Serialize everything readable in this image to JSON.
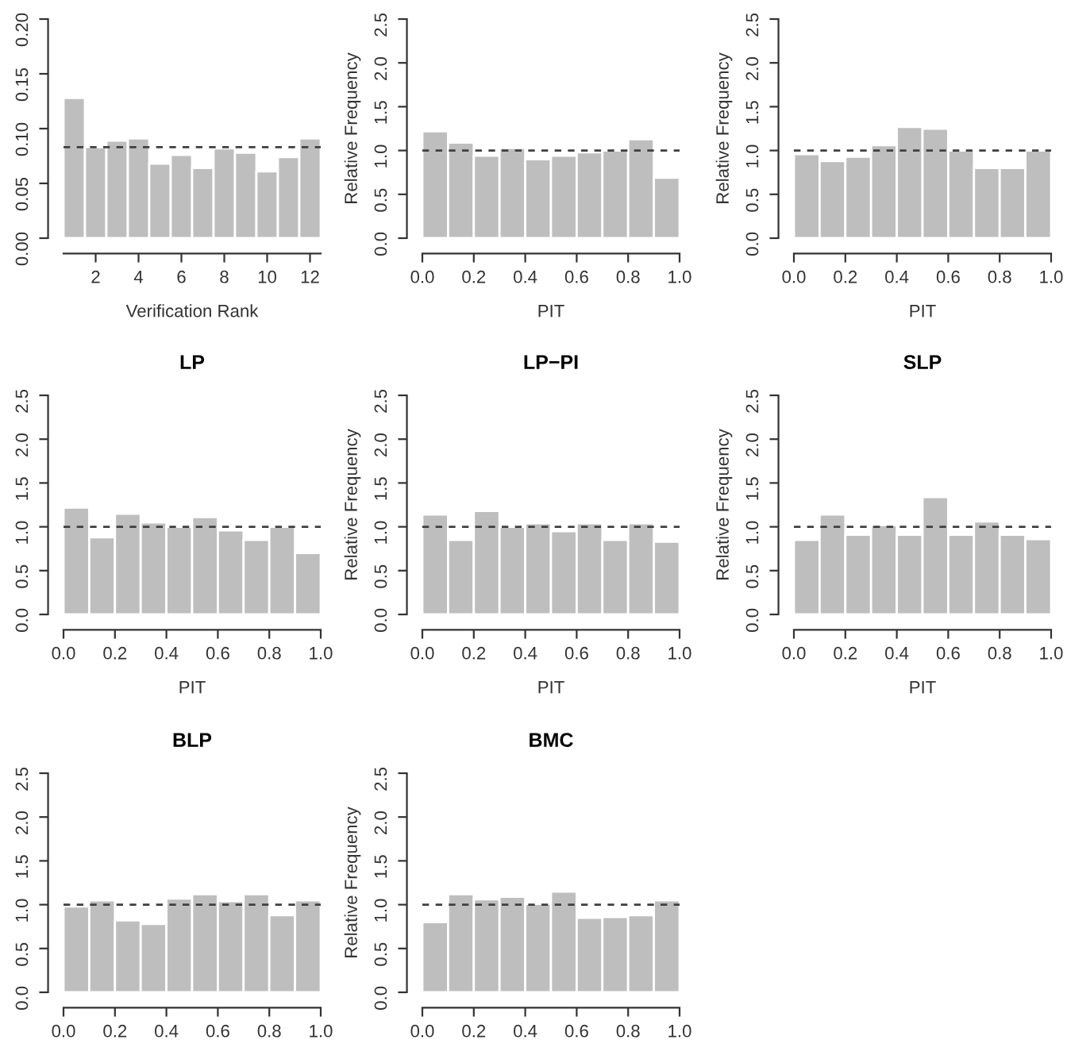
{
  "chart_data": [
    {
      "type": "histogram",
      "xlabel": "Verification Rank",
      "bins": [
        0.5,
        1.5,
        2.5,
        3.5,
        4.5,
        5.5,
        6.5,
        7.5,
        8.5,
        9.5,
        10.5,
        11.5,
        12.5
      ],
      "values": [
        0.128,
        0.083,
        0.089,
        0.091,
        0.068,
        0.076,
        0.064,
        0.082,
        0.078,
        0.061,
        0.074,
        0.091
      ],
      "color": "#bebebe",
      "xlim": [
        0.5,
        12.5
      ],
      "ylim": [
        0,
        0.2
      ],
      "xticks": [
        2,
        4,
        6,
        8,
        10,
        12
      ],
      "yticks": [
        {
          "value": 0,
          "label": "0.00"
        },
        {
          "value": 0.05,
          "label": "0.05"
        },
        {
          "value": 0.1,
          "label": "0.10"
        },
        {
          "value": 0.15,
          "label": "0.15"
        },
        {
          "value": 0.2,
          "label": "0.20"
        }
      ],
      "ref_lines": [
        {
          "axis": "y",
          "value": 0.083,
          "line_style": "dashed",
          "color": "#404040"
        }
      ]
    },
    {
      "type": "histogram",
      "xlabel": "PIT",
      "ylabel": "Relative Frequency",
      "bins": [
        0,
        0.1,
        0.2,
        0.3,
        0.4,
        0.5,
        0.6,
        0.7,
        0.8,
        0.9,
        1.0
      ],
      "values": [
        1.22,
        1.09,
        0.94,
        1.03,
        0.9,
        0.94,
        0.98,
        1.0,
        1.13,
        0.69
      ],
      "color": "#bebebe",
      "xlim": [
        0,
        1
      ],
      "ylim": [
        0,
        2.5
      ],
      "xticks": [
        {
          "value": 0,
          "label": "0.0"
        },
        {
          "value": 0.2,
          "label": "0.2"
        },
        {
          "value": 0.4,
          "label": "0.4"
        },
        {
          "value": 0.6,
          "label": "0.6"
        },
        {
          "value": 0.8,
          "label": "0.8"
        },
        {
          "value": 1,
          "label": "1.0"
        }
      ],
      "yticks": [
        {
          "value": 0,
          "label": "0.0"
        },
        {
          "value": 0.5,
          "label": "0.5"
        },
        {
          "value": 1,
          "label": "1.0"
        },
        {
          "value": 1.5,
          "label": "1.5"
        },
        {
          "value": 2,
          "label": "2.0"
        },
        {
          "value": 2.5,
          "label": "2.5"
        }
      ],
      "ref_lines": [
        {
          "axis": "y",
          "value": 1,
          "line_style": "dashed",
          "color": "#404040"
        }
      ]
    },
    {
      "type": "histogram",
      "xlabel": "PIT",
      "ylabel": "Relative Frequency",
      "bins": [
        0,
        0.1,
        0.2,
        0.3,
        0.4,
        0.5,
        0.6,
        0.7,
        0.8,
        0.9,
        1.0
      ],
      "values": [
        0.96,
        0.88,
        0.93,
        1.06,
        1.27,
        1.25,
        1.0,
        0.8,
        0.8,
        1.0
      ],
      "color": "#bebebe",
      "xlim": [
        0,
        1
      ],
      "ylim": [
        0,
        2.5
      ],
      "xticks": [
        {
          "value": 0,
          "label": "0.0"
        },
        {
          "value": 0.2,
          "label": "0.2"
        },
        {
          "value": 0.4,
          "label": "0.4"
        },
        {
          "value": 0.6,
          "label": "0.6"
        },
        {
          "value": 0.8,
          "label": "0.8"
        },
        {
          "value": 1,
          "label": "1.0"
        }
      ],
      "yticks": [
        {
          "value": 0,
          "label": "0.0"
        },
        {
          "value": 0.5,
          "label": "0.5"
        },
        {
          "value": 1,
          "label": "1.0"
        },
        {
          "value": 1.5,
          "label": "1.5"
        },
        {
          "value": 2,
          "label": "2.0"
        },
        {
          "value": 2.5,
          "label": "2.5"
        }
      ],
      "ref_lines": [
        {
          "axis": "y",
          "value": 1,
          "line_style": "dashed",
          "color": "#404040"
        }
      ]
    },
    {
      "type": "histogram",
      "title": "LP",
      "xlabel": "PIT",
      "bins": [
        0,
        0.1,
        0.2,
        0.3,
        0.4,
        0.5,
        0.6,
        0.7,
        0.8,
        0.9,
        1.0
      ],
      "values": [
        1.22,
        0.88,
        1.15,
        1.05,
        1.0,
        1.11,
        0.96,
        0.85,
        1.0,
        0.7
      ],
      "color": "#bebebe",
      "xlim": [
        0,
        1
      ],
      "ylim": [
        0,
        2.5
      ],
      "xticks": [
        {
          "value": 0,
          "label": "0.0"
        },
        {
          "value": 0.2,
          "label": "0.2"
        },
        {
          "value": 0.4,
          "label": "0.4"
        },
        {
          "value": 0.6,
          "label": "0.6"
        },
        {
          "value": 0.8,
          "label": "0.8"
        },
        {
          "value": 1,
          "label": "1.0"
        }
      ],
      "yticks": [
        {
          "value": 0,
          "label": "0.0"
        },
        {
          "value": 0.5,
          "label": "0.5"
        },
        {
          "value": 1,
          "label": "1.0"
        },
        {
          "value": 1.5,
          "label": "1.5"
        },
        {
          "value": 2,
          "label": "2.0"
        },
        {
          "value": 2.5,
          "label": "2.5"
        }
      ],
      "ref_lines": [
        {
          "axis": "y",
          "value": 1,
          "line_style": "dashed",
          "color": "#404040"
        }
      ]
    },
    {
      "type": "histogram",
      "title": "LP−PI",
      "xlabel": "PIT",
      "ylabel": "Relative Frequency",
      "bins": [
        0,
        0.1,
        0.2,
        0.3,
        0.4,
        0.5,
        0.6,
        0.7,
        0.8,
        0.9,
        1.0
      ],
      "values": [
        1.14,
        0.85,
        1.18,
        1.0,
        1.04,
        0.95,
        1.04,
        0.85,
        1.04,
        0.83
      ],
      "color": "#bebebe",
      "xlim": [
        0,
        1
      ],
      "ylim": [
        0,
        2.5
      ],
      "xticks": [
        {
          "value": 0,
          "label": "0.0"
        },
        {
          "value": 0.2,
          "label": "0.2"
        },
        {
          "value": 0.4,
          "label": "0.4"
        },
        {
          "value": 0.6,
          "label": "0.6"
        },
        {
          "value": 0.8,
          "label": "0.8"
        },
        {
          "value": 1,
          "label": "1.0"
        }
      ],
      "yticks": [
        {
          "value": 0,
          "label": "0.0"
        },
        {
          "value": 0.5,
          "label": "0.5"
        },
        {
          "value": 1,
          "label": "1.0"
        },
        {
          "value": 1.5,
          "label": "1.5"
        },
        {
          "value": 2,
          "label": "2.0"
        },
        {
          "value": 2.5,
          "label": "2.5"
        }
      ],
      "ref_lines": [
        {
          "axis": "y",
          "value": 1,
          "line_style": "dashed",
          "color": "#404040"
        }
      ]
    },
    {
      "type": "histogram",
      "title": "SLP",
      "xlabel": "PIT",
      "ylabel": "Relative Frequency",
      "bins": [
        0,
        0.1,
        0.2,
        0.3,
        0.4,
        0.5,
        0.6,
        0.7,
        0.8,
        0.9,
        1.0
      ],
      "values": [
        0.85,
        1.14,
        0.91,
        1.02,
        0.91,
        1.34,
        0.91,
        1.06,
        0.91,
        0.86
      ],
      "color": "#bebebe",
      "xlim": [
        0,
        1
      ],
      "ylim": [
        0,
        2.5
      ],
      "xticks": [
        {
          "value": 0,
          "label": "0.0"
        },
        {
          "value": 0.2,
          "label": "0.2"
        },
        {
          "value": 0.4,
          "label": "0.4"
        },
        {
          "value": 0.6,
          "label": "0.6"
        },
        {
          "value": 0.8,
          "label": "0.8"
        },
        {
          "value": 1,
          "label": "1.0"
        }
      ],
      "yticks": [
        {
          "value": 0,
          "label": "0.0"
        },
        {
          "value": 0.5,
          "label": "0.5"
        },
        {
          "value": 1,
          "label": "1.0"
        },
        {
          "value": 1.5,
          "label": "1.5"
        },
        {
          "value": 2,
          "label": "2.0"
        },
        {
          "value": 2.5,
          "label": "2.5"
        }
      ],
      "ref_lines": [
        {
          "axis": "y",
          "value": 1,
          "line_style": "dashed",
          "color": "#404040"
        }
      ]
    },
    {
      "type": "histogram",
      "title": "BLP",
      "bins": [
        0,
        0.1,
        0.2,
        0.3,
        0.4,
        0.5,
        0.6,
        0.7,
        0.8,
        0.9,
        1.0
      ],
      "values": [
        0.98,
        1.05,
        0.82,
        0.78,
        1.07,
        1.12,
        1.04,
        1.12,
        0.88,
        1.05
      ],
      "color": "#bebebe",
      "xlim": [
        0,
        1
      ],
      "ylim": [
        0,
        2.5
      ],
      "xticks": [
        {
          "value": 0,
          "label": "0.0"
        },
        {
          "value": 0.2,
          "label": "0.2"
        },
        {
          "value": 0.4,
          "label": "0.4"
        },
        {
          "value": 0.6,
          "label": "0.6"
        },
        {
          "value": 0.8,
          "label": "0.8"
        },
        {
          "value": 1,
          "label": "1.0"
        }
      ],
      "yticks": [
        {
          "value": 0,
          "label": "0.0"
        },
        {
          "value": 0.5,
          "label": "0.5"
        },
        {
          "value": 1,
          "label": "1.0"
        },
        {
          "value": 1.5,
          "label": "1.5"
        },
        {
          "value": 2,
          "label": "2.0"
        },
        {
          "value": 2.5,
          "label": "2.5"
        }
      ],
      "ref_lines": [
        {
          "axis": "y",
          "value": 1,
          "line_style": "dashed",
          "color": "#404040"
        }
      ]
    },
    {
      "type": "histogram",
      "title": "BMC",
      "ylabel": "Relative Frequency",
      "bins": [
        0,
        0.1,
        0.2,
        0.3,
        0.4,
        0.5,
        0.6,
        0.7,
        0.8,
        0.9,
        1.0
      ],
      "values": [
        0.8,
        1.12,
        1.06,
        1.09,
        1.01,
        1.15,
        0.85,
        0.86,
        0.88,
        1.05
      ],
      "color": "#bebebe",
      "xlim": [
        0,
        1
      ],
      "ylim": [
        0,
        2.5
      ],
      "xticks": [
        {
          "value": 0,
          "label": "0.0"
        },
        {
          "value": 0.2,
          "label": "0.2"
        },
        {
          "value": 0.4,
          "label": "0.4"
        },
        {
          "value": 0.6,
          "label": "0.6"
        },
        {
          "value": 0.8,
          "label": "0.8"
        },
        {
          "value": 1,
          "label": "1.0"
        }
      ],
      "yticks": [
        {
          "value": 0,
          "label": "0.0"
        },
        {
          "value": 0.5,
          "label": "0.5"
        },
        {
          "value": 1,
          "label": "1.0"
        },
        {
          "value": 1.5,
          "label": "1.5"
        },
        {
          "value": 2,
          "label": "2.0"
        },
        {
          "value": 2.5,
          "label": "2.5"
        }
      ],
      "ref_lines": [
        {
          "axis": "y",
          "value": 1,
          "line_style": "dashed",
          "color": "#404040"
        }
      ]
    }
  ]
}
